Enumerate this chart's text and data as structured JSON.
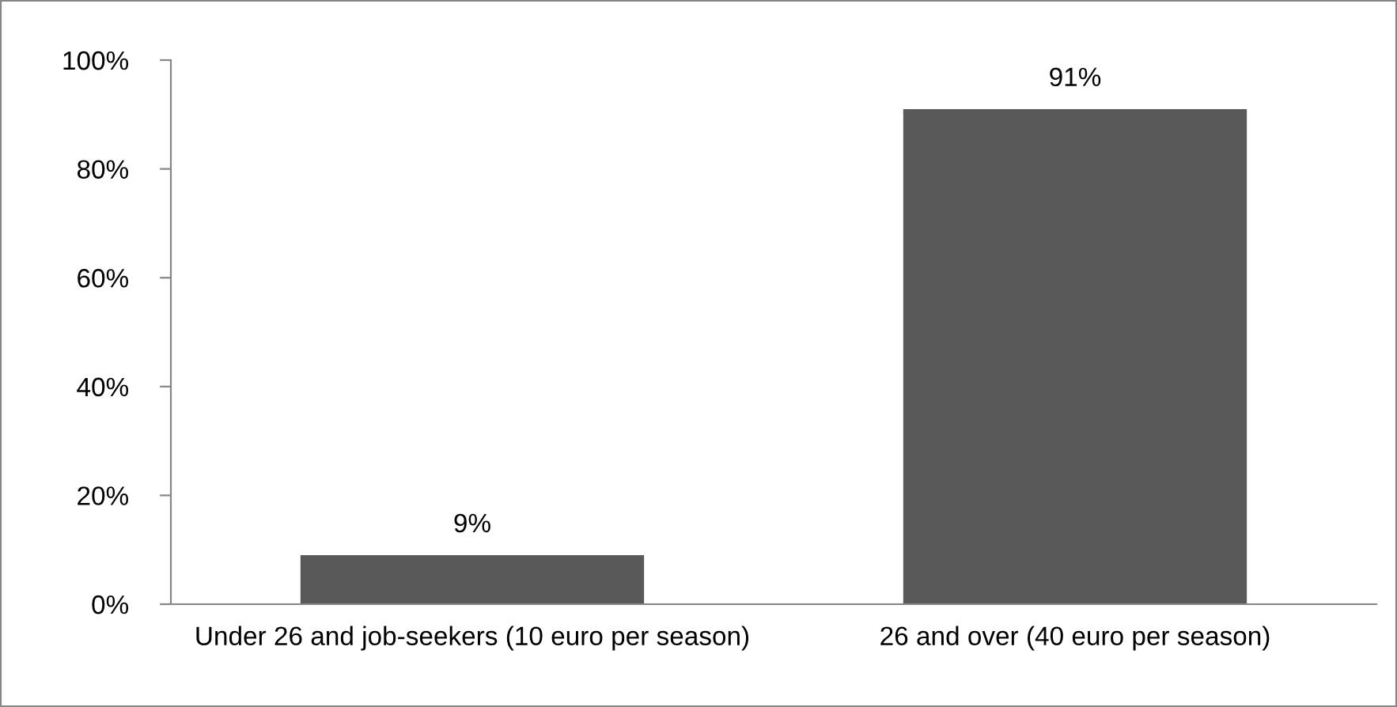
{
  "chart_data": {
    "type": "bar",
    "categories": [
      "Under 26 and job-seekers (10 euro per season)",
      "26 and over (40 euro per season)"
    ],
    "values": [
      9,
      91
    ],
    "value_labels": [
      "9%",
      "91%"
    ],
    "color": "#595959",
    "ylim": [
      0,
      100
    ],
    "yticks": [
      {
        "value": 0,
        "label": "0%"
      },
      {
        "value": 20,
        "label": "20%"
      },
      {
        "value": 40,
        "label": "40%"
      },
      {
        "value": 60,
        "label": "60%"
      },
      {
        "value": 80,
        "label": "80%"
      },
      {
        "value": 100,
        "label": "100%"
      }
    ],
    "grid": false,
    "legend": false
  }
}
